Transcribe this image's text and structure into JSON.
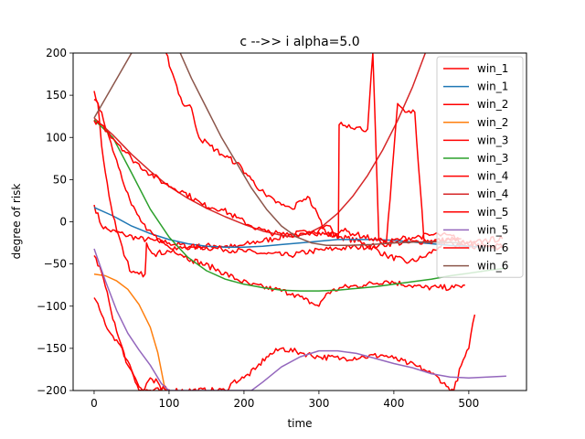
{
  "chart_data": {
    "type": "line",
    "title": "c -->> i  alpha=5.0",
    "xlabel": "time",
    "ylabel": "degree of risk",
    "xlim": [
      -28,
      577
    ],
    "ylim": [
      -200,
      200
    ],
    "xticks": [
      0,
      100,
      200,
      300,
      400,
      500
    ],
    "yticks": [
      -200,
      -150,
      -100,
      -50,
      0,
      50,
      100,
      150,
      200
    ],
    "grid": false,
    "legend_position": "top-right",
    "series": [
      {
        "name": "win_1",
        "color": "#ff0000",
        "kind": "noisy",
        "points": [
          [
            0,
            20
          ],
          [
            10,
            -5
          ],
          [
            20,
            -10
          ],
          [
            40,
            -15
          ],
          [
            60,
            -20
          ],
          [
            80,
            -22
          ],
          [
            100,
            -25
          ],
          [
            130,
            -30
          ],
          [
            160,
            -28
          ],
          [
            190,
            -30
          ],
          [
            210,
            -25
          ],
          [
            240,
            -20
          ],
          [
            260,
            -15
          ],
          [
            290,
            -12
          ],
          [
            330,
            -18
          ],
          [
            360,
            -25
          ],
          [
            390,
            -40
          ],
          [
            420,
            -48
          ],
          [
            440,
            -42
          ],
          [
            460,
            -30
          ],
          [
            470,
            -25
          ],
          [
            480,
            -28
          ],
          [
            490,
            -26
          ],
          [
            500,
            -32
          ],
          [
            510,
            -29
          ],
          [
            530,
            -30
          ],
          [
            545,
            -30
          ]
        ]
      },
      {
        "name": "win_1",
        "color": "#1f77b4",
        "kind": "smooth",
        "points": [
          [
            0,
            17
          ],
          [
            25,
            7
          ],
          [
            50,
            -5
          ],
          [
            75,
            -14
          ],
          [
            100,
            -21
          ],
          [
            125,
            -26
          ],
          [
            150,
            -29
          ],
          [
            175,
            -30
          ],
          [
            200,
            -30
          ],
          [
            225,
            -29
          ],
          [
            250,
            -27
          ],
          [
            275,
            -25
          ],
          [
            300,
            -23
          ],
          [
            325,
            -21
          ],
          [
            350,
            -21
          ],
          [
            375,
            -21
          ],
          [
            400,
            -22
          ],
          [
            425,
            -24
          ],
          [
            450,
            -26
          ],
          [
            475,
            -28
          ],
          [
            500,
            -29
          ],
          [
            520,
            -30
          ]
        ]
      },
      {
        "name": "win_2",
        "color": "#ff0000",
        "kind": "noisy",
        "points": [
          [
            0,
            155
          ],
          [
            5,
            140
          ],
          [
            10,
            90
          ],
          [
            20,
            30
          ],
          [
            30,
            -10
          ],
          [
            40,
            -40
          ],
          [
            50,
            -60
          ],
          [
            60,
            -62
          ],
          [
            68,
            -62
          ],
          [
            70,
            -25
          ],
          [
            80,
            -38
          ],
          [
            100,
            -35
          ],
          [
            120,
            -30
          ],
          [
            140,
            -30
          ],
          [
            170,
            -32
          ],
          [
            200,
            -35
          ],
          [
            230,
            -38
          ],
          [
            260,
            -40
          ],
          [
            290,
            -35
          ],
          [
            320,
            -32
          ],
          [
            350,
            -30
          ],
          [
            380,
            -28
          ],
          [
            400,
            -25
          ],
          [
            420,
            -25
          ],
          [
            450,
            -22
          ],
          [
            470,
            -22
          ],
          [
            480,
            -20
          ],
          [
            490,
            -25
          ],
          [
            500,
            -28
          ],
          [
            520,
            -22
          ],
          [
            545,
            -20
          ]
        ]
      },
      {
        "name": "win_2",
        "color": "#ff7f0e",
        "kind": "smooth",
        "points": [
          [
            0,
            -62
          ],
          [
            15,
            -64
          ],
          [
            30,
            -70
          ],
          [
            45,
            -80
          ],
          [
            60,
            -98
          ],
          [
            75,
            -125
          ],
          [
            85,
            -155
          ],
          [
            95,
            -200
          ]
        ]
      },
      {
        "name": "win_3",
        "color": "#ff0000",
        "kind": "noisy",
        "points": [
          [
            0,
            145
          ],
          [
            10,
            130
          ],
          [
            20,
            100
          ],
          [
            35,
            60
          ],
          [
            50,
            20
          ],
          [
            70,
            -10
          ],
          [
            100,
            -30
          ],
          [
            130,
            -45
          ],
          [
            160,
            -55
          ],
          [
            190,
            -68
          ],
          [
            210,
            -75
          ],
          [
            240,
            -80
          ],
          [
            265,
            -85
          ],
          [
            280,
            -92
          ],
          [
            300,
            -100
          ],
          [
            310,
            -85
          ],
          [
            330,
            -78
          ],
          [
            360,
            -75
          ],
          [
            390,
            -70
          ],
          [
            420,
            -75
          ],
          [
            440,
            -78
          ],
          [
            460,
            -78
          ],
          [
            480,
            -78
          ],
          [
            495,
            -75
          ]
        ]
      },
      {
        "name": "win_3",
        "color": "#2ca02c",
        "kind": "smooth",
        "points": [
          [
            0,
            121
          ],
          [
            25,
            100
          ],
          [
            50,
            58
          ],
          [
            75,
            15
          ],
          [
            100,
            -18
          ],
          [
            125,
            -42
          ],
          [
            150,
            -58
          ],
          [
            175,
            -68
          ],
          [
            200,
            -74
          ],
          [
            225,
            -78
          ],
          [
            250,
            -81
          ],
          [
            275,
            -82
          ],
          [
            300,
            -82
          ],
          [
            325,
            -81
          ],
          [
            350,
            -79
          ],
          [
            375,
            -77
          ],
          [
            400,
            -74
          ],
          [
            425,
            -71
          ],
          [
            450,
            -68
          ],
          [
            475,
            -64
          ],
          [
            500,
            -61
          ],
          [
            530,
            -57
          ],
          [
            550,
            -55
          ]
        ]
      },
      {
        "name": "win_4",
        "color": "#ff0000",
        "kind": "noisy",
        "points": [
          [
            0,
            -40
          ],
          [
            10,
            -60
          ],
          [
            20,
            -95
          ],
          [
            30,
            -130
          ],
          [
            45,
            -170
          ],
          [
            55,
            -190
          ],
          [
            60,
            -200
          ],
          [
            65,
            -200
          ],
          [
            75,
            -185
          ],
          [
            85,
            -190
          ],
          [
            90,
            -200
          ],
          [
            95,
            -195
          ],
          [
            100,
            -200
          ]
        ]
      },
      {
        "name": "win_4",
        "color": "#d62728",
        "kind": "smooth",
        "points": [
          [
            0,
            123
          ],
          [
            25,
            103
          ],
          [
            50,
            80
          ],
          [
            75,
            60
          ],
          [
            100,
            42
          ],
          [
            125,
            28
          ],
          [
            150,
            16
          ],
          [
            175,
            6
          ],
          [
            200,
            -3
          ],
          [
            225,
            -11
          ],
          [
            250,
            -16
          ],
          [
            265,
            -18
          ],
          [
            285,
            -14
          ],
          [
            305,
            -5
          ],
          [
            325,
            10
          ],
          [
            345,
            30
          ],
          [
            365,
            55
          ],
          [
            385,
            85
          ],
          [
            405,
            120
          ],
          [
            425,
            160
          ],
          [
            442,
            200
          ]
        ]
      },
      {
        "name": "win_5",
        "color": "#ff0000",
        "kind": "noisy",
        "points": [
          [
            0,
            -90
          ],
          [
            10,
            -110
          ],
          [
            20,
            -130
          ],
          [
            30,
            -140
          ],
          [
            45,
            -165
          ],
          [
            55,
            -185
          ],
          [
            65,
            -200
          ],
          [
            175,
            -200
          ],
          [
            185,
            -190
          ],
          [
            200,
            -185
          ],
          [
            215,
            -175
          ],
          [
            230,
            -160
          ],
          [
            250,
            -150
          ],
          [
            275,
            -155
          ],
          [
            300,
            -160
          ],
          [
            330,
            -162
          ],
          [
            360,
            -160
          ],
          [
            385,
            -158
          ],
          [
            400,
            -162
          ],
          [
            420,
            -168
          ],
          [
            440,
            -175
          ],
          [
            450,
            -180
          ],
          [
            460,
            -185
          ],
          [
            470,
            -195
          ],
          [
            480,
            -200
          ],
          [
            490,
            -170
          ],
          [
            500,
            -150
          ],
          [
            508,
            -110
          ]
        ]
      },
      {
        "name": "win_5",
        "color": "#9467bd",
        "kind": "smooth",
        "points": [
          [
            0,
            -32
          ],
          [
            15,
            -70
          ],
          [
            30,
            -105
          ],
          [
            45,
            -132
          ],
          [
            60,
            -152
          ],
          [
            75,
            -170
          ],
          [
            90,
            -192
          ],
          [
            100,
            -200
          ],
          [
            210,
            -200
          ],
          [
            225,
            -190
          ],
          [
            250,
            -172
          ],
          [
            275,
            -160
          ],
          [
            300,
            -153
          ],
          [
            325,
            -153
          ],
          [
            350,
            -156
          ],
          [
            375,
            -162
          ],
          [
            400,
            -168
          ],
          [
            425,
            -173
          ],
          [
            450,
            -180
          ],
          [
            475,
            -184
          ],
          [
            500,
            -185
          ],
          [
            525,
            -184
          ],
          [
            550,
            -183
          ]
        ]
      },
      {
        "name": "win_6",
        "color": "#ff0000",
        "kind": "noisy",
        "points": [
          [
            0,
            120
          ],
          [
            10,
            115
          ],
          [
            20,
            105
          ],
          [
            35,
            90
          ],
          [
            50,
            75
          ],
          [
            70,
            60
          ],
          [
            95,
            45
          ],
          [
            120,
            35
          ],
          [
            145,
            20
          ],
          [
            170,
            15
          ],
          [
            190,
            5
          ],
          [
            210,
            -5
          ],
          [
            230,
            -12
          ],
          [
            250,
            -15
          ],
          [
            270,
            -15
          ],
          [
            285,
            -12
          ],
          [
            300,
            -10
          ],
          [
            315,
            -5
          ],
          [
            320,
            -18
          ],
          [
            326,
            -18
          ],
          [
            327,
            115
          ],
          [
            340,
            115
          ],
          [
            350,
            112
          ],
          [
            365,
            110
          ],
          [
            372,
            200
          ],
          [
            380,
            -22
          ],
          [
            390,
            -25
          ],
          [
            405,
            140
          ],
          [
            415,
            130
          ],
          [
            428,
            130
          ],
          [
            440,
            -20
          ],
          [
            460,
            -25
          ],
          [
            480,
            -20
          ],
          [
            500,
            -25
          ],
          [
            520,
            -28
          ],
          [
            545,
            -30
          ]
        ]
      },
      {
        "name": "win_6",
        "color": "#8c564b",
        "kind": "smooth",
        "points": [
          [
            0,
            123
          ],
          [
            50,
            200
          ]
        ]
      }
    ],
    "extra_curves": [
      {
        "color": "#ff0000",
        "points": [
          [
            96,
            200
          ],
          [
            105,
            175
          ],
          [
            118,
            140
          ],
          [
            130,
            135
          ],
          [
            140,
            100
          ],
          [
            155,
            90
          ],
          [
            170,
            80
          ],
          [
            190,
            70
          ],
          [
            210,
            50
          ],
          [
            230,
            30
          ],
          [
            250,
            20
          ],
          [
            265,
            15
          ],
          [
            275,
            25
          ],
          [
            285,
            30
          ],
          [
            300,
            5
          ],
          [
            310,
            -15
          ],
          [
            330,
            -10
          ],
          [
            350,
            -15
          ],
          [
            370,
            -20
          ],
          [
            390,
            -25
          ],
          [
            410,
            -20
          ],
          [
            430,
            -18
          ],
          [
            460,
            -15
          ],
          [
            490,
            -20
          ]
        ]
      },
      {
        "color": "#8c564b",
        "points": [
          [
            115,
            200
          ],
          [
            130,
            170
          ],
          [
            150,
            135
          ],
          [
            170,
            100
          ],
          [
            190,
            70
          ],
          [
            210,
            40
          ],
          [
            230,
            15
          ],
          [
            250,
            -5
          ],
          [
            270,
            -18
          ],
          [
            290,
            -25
          ],
          [
            310,
            -28
          ],
          [
            340,
            -28
          ],
          [
            370,
            -27
          ],
          [
            400,
            -25
          ],
          [
            430,
            -24
          ],
          [
            460,
            -24
          ],
          [
            490,
            -25
          ]
        ]
      }
    ]
  }
}
